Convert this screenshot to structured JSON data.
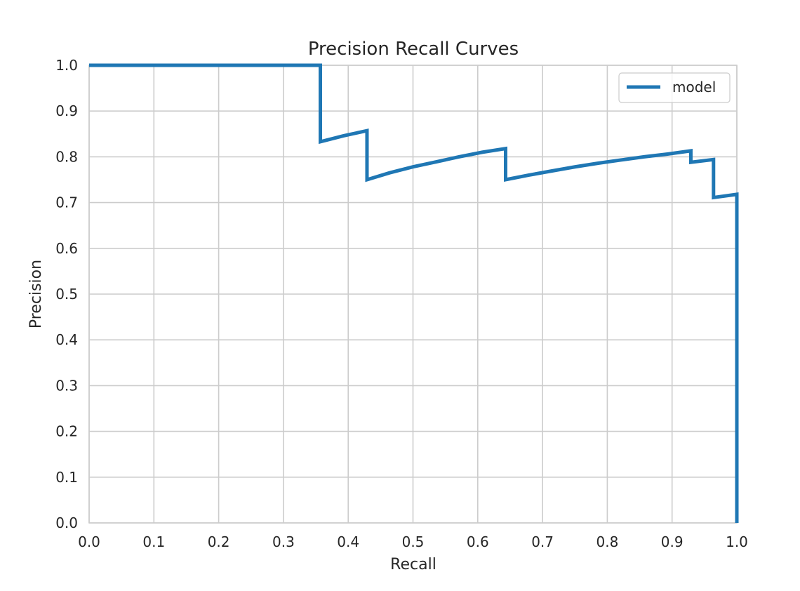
{
  "chart_data": {
    "type": "line",
    "title": "Precision Recall Curves",
    "xlabel": "Recall",
    "ylabel": "Precision",
    "xlim": [
      0.0,
      1.0
    ],
    "ylim": [
      0.0,
      1.0
    ],
    "xticks": [
      "0.0",
      "0.1",
      "0.2",
      "0.3",
      "0.4",
      "0.5",
      "0.6",
      "0.7",
      "0.8",
      "0.9",
      "1.0"
    ],
    "yticks": [
      "0.0",
      "0.1",
      "0.2",
      "0.3",
      "0.4",
      "0.5",
      "0.6",
      "0.7",
      "0.8",
      "0.9",
      "1.0"
    ],
    "grid": true,
    "legend_position": "top-right",
    "series": [
      {
        "name": "model",
        "color": "#1f77b4",
        "points": [
          [
            0.0,
            1.0
          ],
          [
            0.357,
            1.0
          ],
          [
            0.357,
            0.833
          ],
          [
            0.393,
            0.846
          ],
          [
            0.429,
            0.857
          ],
          [
            0.429,
            0.75
          ],
          [
            0.464,
            0.765
          ],
          [
            0.5,
            0.778
          ],
          [
            0.536,
            0.789
          ],
          [
            0.571,
            0.8
          ],
          [
            0.607,
            0.81
          ],
          [
            0.643,
            0.818
          ],
          [
            0.643,
            0.75
          ],
          [
            0.679,
            0.76
          ],
          [
            0.714,
            0.769
          ],
          [
            0.75,
            0.778
          ],
          [
            0.786,
            0.786
          ],
          [
            0.821,
            0.793
          ],
          [
            0.857,
            0.8
          ],
          [
            0.893,
            0.806
          ],
          [
            0.929,
            0.813
          ],
          [
            0.929,
            0.788
          ],
          [
            0.964,
            0.794
          ],
          [
            0.964,
            0.711
          ],
          [
            1.0,
            0.718
          ],
          [
            1.0,
            0.0
          ]
        ]
      }
    ]
  }
}
